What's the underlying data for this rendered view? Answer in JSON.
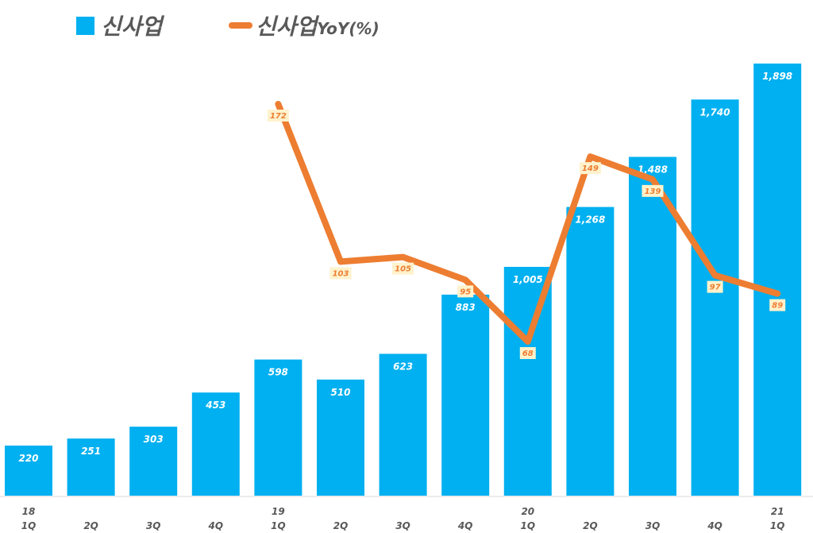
{
  "legend": {
    "bar_series": "신사업",
    "line_series_main": "신사업",
    "line_series_suffix": "YoY(%)"
  },
  "colors": {
    "bar": "#00B0F0",
    "line": "#ED7D31",
    "label_box": "#FFF2CC",
    "axis_text": "#595959"
  },
  "chart_data": {
    "type": "bar+line",
    "title": "",
    "categories": [
      "18 1Q",
      "2Q",
      "3Q",
      "4Q",
      "19 1Q",
      "2Q",
      "3Q",
      "4Q",
      "20 1Q",
      "2Q",
      "3Q",
      "4Q",
      "21 1Q"
    ],
    "x_tick_years": [
      "18",
      "",
      "",
      "",
      "19",
      "",
      "",
      "",
      "20",
      "",
      "",
      "",
      "21"
    ],
    "x_tick_quarters": [
      "1Q",
      "2Q",
      "3Q",
      "4Q",
      "1Q",
      "2Q",
      "3Q",
      "4Q",
      "1Q",
      "2Q",
      "3Q",
      "4Q",
      "1Q"
    ],
    "series": [
      {
        "name": "신사업",
        "type": "bar",
        "values": [
          220,
          251,
          303,
          453,
          598,
          510,
          623,
          883,
          1005,
          1268,
          1488,
          1740,
          1898
        ],
        "labels": [
          "220",
          "251",
          "303",
          "453",
          "598",
          "510",
          "623",
          "883",
          "1,005",
          "1,268",
          "1,488",
          "1,740",
          "1,898"
        ]
      },
      {
        "name": "신사업 YoY(%)",
        "type": "line",
        "values": [
          null,
          null,
          null,
          null,
          172,
          103,
          105,
          95,
          68,
          149,
          139,
          97,
          89
        ]
      }
    ],
    "xlabel": "",
    "ylabel": "",
    "grid": false,
    "legend_position": "top"
  }
}
